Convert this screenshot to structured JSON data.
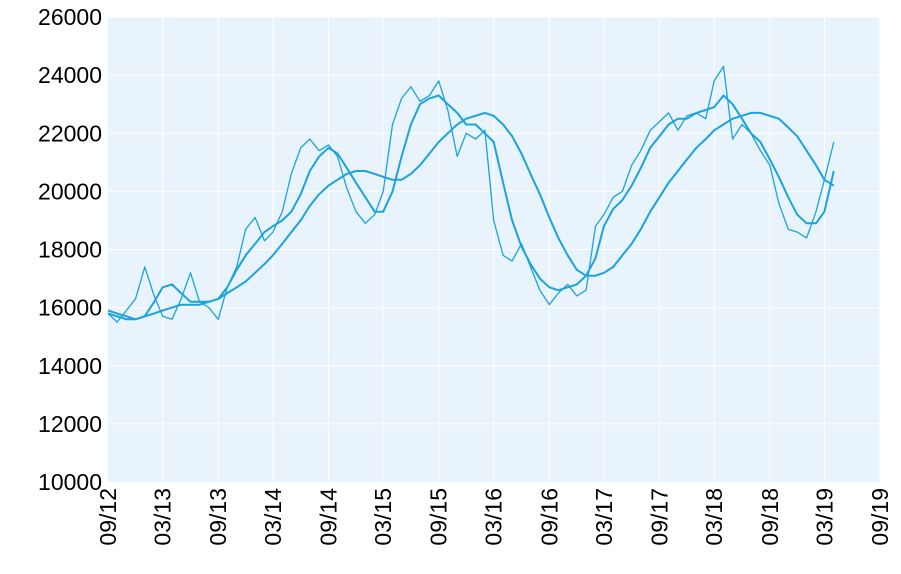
{
  "chart_data": {
    "type": "line",
    "title": "",
    "xlabel": "",
    "ylabel": "",
    "ylim": [
      10000,
      26000
    ],
    "yticks": [
      10000,
      12000,
      14000,
      16000,
      18000,
      20000,
      22000,
      24000,
      26000
    ],
    "ytick_labels": [
      "10000",
      "12000",
      "14000",
      "16000",
      "18000",
      "20000",
      "22000",
      "24000",
      "26000"
    ],
    "xlim": [
      "2012-09",
      "2019-09"
    ],
    "xticks": [
      "2012-09",
      "2013-03",
      "2013-09",
      "2014-03",
      "2014-09",
      "2015-03",
      "2015-09",
      "2016-03",
      "2016-09",
      "2017-03",
      "2017-09",
      "2018-03",
      "2018-09",
      "2019-03",
      "2019-09"
    ],
    "xtick_labels": [
      "09/12",
      "03/13",
      "09/13",
      "03/14",
      "09/14",
      "03/15",
      "09/15",
      "03/16",
      "09/16",
      "03/17",
      "09/17",
      "03/18",
      "09/18",
      "03/19",
      "09/19"
    ],
    "grid": true,
    "colors": {
      "line": "#1aa3dd",
      "plot_bg": "#e8f3fb",
      "grid": "#ffffff"
    },
    "series": [
      {
        "x": [
          "2012-09-01",
          "2012-10-01",
          "2012-11-01",
          "2012-12-01",
          "2013-01-01",
          "2013-02-01",
          "2013-03-01",
          "2013-04-01",
          "2013-05-01",
          "2013-06-01",
          "2013-07-01",
          "2013-08-01",
          "2013-09-01",
          "2013-10-01",
          "2013-11-01",
          "2013-12-01",
          "2014-01-01",
          "2014-02-01",
          "2014-03-01",
          "2014-04-01",
          "2014-05-01",
          "2014-06-01",
          "2014-07-01",
          "2014-08-01",
          "2014-09-01",
          "2014-10-01",
          "2014-11-01",
          "2014-12-01",
          "2015-01-01",
          "2015-02-01",
          "2015-03-01",
          "2015-04-01",
          "2015-05-01",
          "2015-06-01",
          "2015-07-01",
          "2015-08-01",
          "2015-09-01",
          "2015-10-01",
          "2015-11-01",
          "2015-12-01",
          "2016-01-01",
          "2016-02-01",
          "2016-03-01",
          "2016-04-01",
          "2016-05-01",
          "2016-06-01",
          "2016-07-01",
          "2016-08-01",
          "2016-09-01",
          "2016-10-01",
          "2016-11-01",
          "2016-12-01",
          "2017-01-01",
          "2017-02-01",
          "2017-03-01",
          "2017-04-01",
          "2017-05-01",
          "2017-06-01",
          "2017-07-01",
          "2017-08-01",
          "2017-09-01",
          "2017-10-01",
          "2017-11-01",
          "2017-12-01",
          "2018-01-01",
          "2018-02-01",
          "2018-03-01",
          "2018-04-01",
          "2018-05-01",
          "2018-06-01",
          "2018-07-01",
          "2018-08-01",
          "2018-09-01",
          "2018-10-01",
          "2018-11-01",
          "2018-12-01",
          "2019-01-01",
          "2019-02-01",
          "2019-03-01",
          "2019-04-01"
        ],
        "values": [
          15800,
          15500,
          15900,
          16300,
          17400,
          16400,
          15700,
          15600,
          16300,
          17200,
          16200,
          16000,
          15600,
          16700,
          17400,
          18700,
          19100,
          18300,
          18600,
          19300,
          20600,
          21500,
          21800,
          21400,
          21600,
          21200,
          20100,
          19300,
          18900,
          19200,
          20000,
          22300,
          23200,
          23600,
          23100,
          23300,
          23800,
          22800,
          21200,
          22000,
          21800,
          22100,
          19000,
          17800,
          17600,
          18200,
          17400,
          16600,
          16100,
          16500,
          16800,
          16400,
          16600,
          18800,
          19200,
          19800,
          20000,
          20900,
          21400,
          22100,
          22400,
          22700,
          22100,
          22600,
          22700,
          22500,
          23800,
          24300,
          21800,
          22300,
          22000,
          21400,
          20900,
          19600,
          18700,
          18600,
          18400,
          19300,
          20400,
          21700
        ]
      },
      {
        "x": [
          "2012-09-01",
          "2012-10-01",
          "2012-11-01",
          "2012-12-01",
          "2013-01-01",
          "2013-02-01",
          "2013-03-01",
          "2013-04-01",
          "2013-05-01",
          "2013-06-01",
          "2013-07-01",
          "2013-08-01",
          "2013-09-01",
          "2013-10-01",
          "2013-11-01",
          "2013-12-01",
          "2014-01-01",
          "2014-02-01",
          "2014-03-01",
          "2014-04-01",
          "2014-05-01",
          "2014-06-01",
          "2014-07-01",
          "2014-08-01",
          "2014-09-01",
          "2014-10-01",
          "2014-11-01",
          "2014-12-01",
          "2015-01-01",
          "2015-02-01",
          "2015-03-01",
          "2015-04-01",
          "2015-05-01",
          "2015-06-01",
          "2015-07-01",
          "2015-08-01",
          "2015-09-01",
          "2015-10-01",
          "2015-11-01",
          "2015-12-01",
          "2016-01-01",
          "2016-02-01",
          "2016-03-01",
          "2016-04-01",
          "2016-05-01",
          "2016-06-01",
          "2016-07-01",
          "2016-08-01",
          "2016-09-01",
          "2016-10-01",
          "2016-11-01",
          "2016-12-01",
          "2017-01-01",
          "2017-02-01",
          "2017-03-01",
          "2017-04-01",
          "2017-05-01",
          "2017-06-01",
          "2017-07-01",
          "2017-08-01",
          "2017-09-01",
          "2017-10-01",
          "2017-11-01",
          "2017-12-01",
          "2018-01-01",
          "2018-02-01",
          "2018-03-01",
          "2018-04-01",
          "2018-05-01",
          "2018-06-01",
          "2018-07-01",
          "2018-08-01",
          "2018-09-01",
          "2018-10-01",
          "2018-11-01",
          "2018-12-01",
          "2019-01-01",
          "2019-02-01",
          "2019-03-01",
          "2019-04-01"
        ],
        "values": [
          15900,
          15800,
          15700,
          15600,
          15700,
          16200,
          16700,
          16800,
          16500,
          16200,
          16200,
          16200,
          16300,
          16700,
          17300,
          17800,
          18200,
          18600,
          18800,
          19000,
          19300,
          19900,
          20700,
          21200,
          21500,
          21300,
          20800,
          20300,
          19800,
          19300,
          19300,
          20000,
          21200,
          22300,
          23000,
          23200,
          23300,
          23000,
          22700,
          22300,
          22300,
          22000,
          21700,
          20300,
          19000,
          18100,
          17500,
          17000,
          16700,
          16600,
          16700,
          16800,
          17100,
          17700,
          18800,
          19400,
          19700,
          20200,
          20800,
          21500,
          21900,
          22300,
          22500,
          22500,
          22700,
          22800,
          22900,
          23300,
          23000,
          22500,
          22000,
          21700,
          21100,
          20500,
          19800,
          19200,
          18900,
          18900,
          19300,
          20700
        ]
      },
      {
        "x": [
          "2012-09-01",
          "2012-10-01",
          "2012-11-01",
          "2012-12-01",
          "2013-01-01",
          "2013-02-01",
          "2013-03-01",
          "2013-04-01",
          "2013-05-01",
          "2013-06-01",
          "2013-07-01",
          "2013-08-01",
          "2013-09-01",
          "2013-10-01",
          "2013-11-01",
          "2013-12-01",
          "2014-01-01",
          "2014-02-01",
          "2014-03-01",
          "2014-04-01",
          "2014-05-01",
          "2014-06-01",
          "2014-07-01",
          "2014-08-01",
          "2014-09-01",
          "2014-10-01",
          "2014-11-01",
          "2014-12-01",
          "2015-01-01",
          "2015-02-01",
          "2015-03-01",
          "2015-04-01",
          "2015-05-01",
          "2015-06-01",
          "2015-07-01",
          "2015-08-01",
          "2015-09-01",
          "2015-10-01",
          "2015-11-01",
          "2015-12-01",
          "2016-01-01",
          "2016-02-01",
          "2016-03-01",
          "2016-04-01",
          "2016-05-01",
          "2016-06-01",
          "2016-07-01",
          "2016-08-01",
          "2016-09-01",
          "2016-10-01",
          "2016-11-01",
          "2016-12-01",
          "2017-01-01",
          "2017-02-01",
          "2017-03-01",
          "2017-04-01",
          "2017-05-01",
          "2017-06-01",
          "2017-07-01",
          "2017-08-01",
          "2017-09-01",
          "2017-10-01",
          "2017-11-01",
          "2017-12-01",
          "2018-01-01",
          "2018-02-01",
          "2018-03-01",
          "2018-04-01",
          "2018-05-01",
          "2018-06-01",
          "2018-07-01",
          "2018-08-01",
          "2018-09-01",
          "2018-10-01",
          "2018-11-01",
          "2018-12-01",
          "2019-01-01",
          "2019-02-01",
          "2019-03-01",
          "2019-04-01"
        ],
        "values": [
          15800,
          15700,
          15600,
          15600,
          15700,
          15800,
          15900,
          16000,
          16100,
          16100,
          16100,
          16200,
          16300,
          16500,
          16700,
          16900,
          17200,
          17500,
          17800,
          18200,
          18600,
          19000,
          19500,
          19900,
          20200,
          20400,
          20600,
          20700,
          20700,
          20600,
          20500,
          20400,
          20400,
          20600,
          20900,
          21300,
          21700,
          22000,
          22300,
          22500,
          22600,
          22700,
          22600,
          22300,
          21900,
          21300,
          20600,
          19900,
          19100,
          18400,
          17800,
          17300,
          17100,
          17100,
          17200,
          17400,
          17800,
          18200,
          18700,
          19300,
          19800,
          20300,
          20700,
          21100,
          21500,
          21800,
          22100,
          22300,
          22500,
          22600,
          22700,
          22700,
          22600,
          22500,
          22200,
          21900,
          21400,
          20900,
          20400,
          20200
        ]
      }
    ]
  }
}
